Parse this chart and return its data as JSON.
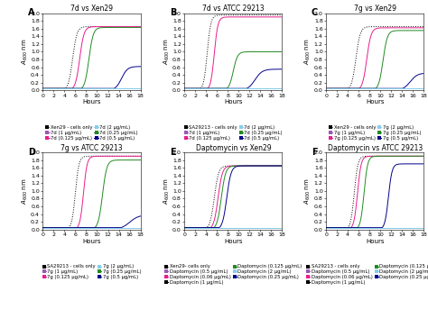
{
  "panels": [
    {
      "label": "A",
      "title": "7d vs Xen29",
      "legend_cols": 2,
      "legend": [
        {
          "text": "Xen29 - cells only",
          "color": "#000000",
          "ls": "dotted"
        },
        {
          "text": "7d (1 µg/mL)",
          "color": "#9b59b6",
          "ls": "solid"
        },
        {
          "text": "7d (0.125 µg/mL)",
          "color": "#e91e8c",
          "ls": "solid"
        },
        {
          "text": "7d (2 µg/mL)",
          "color": "#87ceeb",
          "ls": "solid"
        },
        {
          "text": "7d (0.25 µg/mL)",
          "color": "#228b22",
          "ls": "solid"
        },
        {
          "text": "7d (0.5 µg/mL)",
          "color": "#00008b",
          "ls": "solid"
        }
      ],
      "curves": [
        {
          "color": "#000000",
          "ls": "dotted",
          "lag": 5.5,
          "ymax": 1.65,
          "k": 2.5
        },
        {
          "color": "#e91e8c",
          "ls": "solid",
          "lag": 6.8,
          "ymax": 1.65,
          "k": 2.5
        },
        {
          "color": "#228b22",
          "ls": "solid",
          "lag": 8.5,
          "ymax": 1.63,
          "k": 2.5
        },
        {
          "color": "#00008b",
          "ls": "solid",
          "lag": 14.5,
          "ymax": 0.62,
          "k": 1.8
        },
        {
          "color": "#9b59b6",
          "ls": "solid",
          "lag": 99,
          "ymax": 0.08,
          "k": 0.1
        },
        {
          "color": "#87ceeb",
          "ls": "solid",
          "lag": 99,
          "ymax": 0.08,
          "k": 0.1
        }
      ]
    },
    {
      "label": "B",
      "title": "7d vs ATCC 29213",
      "legend_cols": 2,
      "legend": [
        {
          "text": "SA29213 - cells only",
          "color": "#000000",
          "ls": "dotted"
        },
        {
          "text": "7d (1 µg/mL)",
          "color": "#9b59b6",
          "ls": "solid"
        },
        {
          "text": "7d (0.125 µg/mL)",
          "color": "#e91e8c",
          "ls": "solid"
        },
        {
          "text": "7d (2 µg/mL)",
          "color": "#87ceeb",
          "ls": "solid"
        },
        {
          "text": "7d (0.25 µg/mL)",
          "color": "#228b22",
          "ls": "solid"
        },
        {
          "text": "7d (0.5 µg/mL)",
          "color": "#00008b",
          "ls": "solid"
        }
      ],
      "curves": [
        {
          "color": "#000000",
          "ls": "dotted",
          "lag": 4.2,
          "ymax": 1.95,
          "k": 3.0
        },
        {
          "color": "#e91e8c",
          "ls": "solid",
          "lag": 5.5,
          "ymax": 1.9,
          "k": 3.0
        },
        {
          "color": "#228b22",
          "ls": "solid",
          "lag": 9.0,
          "ymax": 1.0,
          "k": 2.5
        },
        {
          "color": "#00008b",
          "ls": "solid",
          "lag": 13.0,
          "ymax": 0.55,
          "k": 1.5
        },
        {
          "color": "#9b59b6",
          "ls": "solid",
          "lag": 99,
          "ymax": 0.08,
          "k": 0.1
        },
        {
          "color": "#87ceeb",
          "ls": "solid",
          "lag": 99,
          "ymax": 0.08,
          "k": 0.1
        }
      ]
    },
    {
      "label": "C",
      "title": "7g vs Xen29",
      "legend_cols": 2,
      "legend": [
        {
          "text": "Xen29 - cells only",
          "color": "#000000",
          "ls": "dotted"
        },
        {
          "text": "7g (1 µg/mL)",
          "color": "#9b59b6",
          "ls": "solid"
        },
        {
          "text": "7g (0.125 µg/mL)",
          "color": "#e91e8c",
          "ls": "solid"
        },
        {
          "text": "7g (2 µg/mL)",
          "color": "#87ceeb",
          "ls": "solid"
        },
        {
          "text": "7g (0.25 µg/mL)",
          "color": "#228b22",
          "ls": "solid"
        },
        {
          "text": "7g (0.5 µg/mL)",
          "color": "#00008b",
          "ls": "solid"
        }
      ],
      "curves": [
        {
          "color": "#000000",
          "ls": "dotted",
          "lag": 5.5,
          "ymax": 1.65,
          "k": 2.5
        },
        {
          "color": "#e91e8c",
          "ls": "solid",
          "lag": 7.5,
          "ymax": 1.62,
          "k": 2.5
        },
        {
          "color": "#228b22",
          "ls": "solid",
          "lag": 10.5,
          "ymax": 1.55,
          "k": 2.5
        },
        {
          "color": "#00008b",
          "ls": "solid",
          "lag": 15.5,
          "ymax": 0.45,
          "k": 1.5
        },
        {
          "color": "#9b59b6",
          "ls": "solid",
          "lag": 99,
          "ymax": 0.07,
          "k": 0.1
        },
        {
          "color": "#87ceeb",
          "ls": "solid",
          "lag": 99,
          "ymax": 0.07,
          "k": 0.1
        }
      ]
    },
    {
      "label": "D",
      "title": "7g vs ATCC 29213",
      "legend_cols": 2,
      "legend": [
        {
          "text": "SA29213 - cells only",
          "color": "#000000",
          "ls": "dotted"
        },
        {
          "text": "7g (1 µg/mL)",
          "color": "#9b59b6",
          "ls": "solid"
        },
        {
          "text": "7g (0.125 µg/mL)",
          "color": "#e91e8c",
          "ls": "solid"
        },
        {
          "text": "7g (2 µg/mL)",
          "color": "#87ceeb",
          "ls": "solid"
        },
        {
          "text": "7g (0.25 µg/mL)",
          "color": "#228b22",
          "ls": "solid"
        },
        {
          "text": "7g (0.5 µg/mL)",
          "color": "#00008b",
          "ls": "solid"
        }
      ],
      "curves": [
        {
          "color": "#000000",
          "ls": "dotted",
          "lag": 6.0,
          "ymax": 1.9,
          "k": 3.0
        },
        {
          "color": "#e91e8c",
          "ls": "solid",
          "lag": 7.5,
          "ymax": 1.9,
          "k": 3.0
        },
        {
          "color": "#228b22",
          "ls": "solid",
          "lag": 11.0,
          "ymax": 1.8,
          "k": 2.5
        },
        {
          "color": "#00008b",
          "ls": "solid",
          "lag": 16.0,
          "ymax": 0.38,
          "k": 1.2
        },
        {
          "color": "#9b59b6",
          "ls": "solid",
          "lag": 99,
          "ymax": 0.07,
          "k": 0.1
        },
        {
          "color": "#87ceeb",
          "ls": "solid",
          "lag": 99,
          "ymax": 0.07,
          "k": 0.1
        }
      ]
    },
    {
      "label": "E",
      "title": "Daptomycin vs Xen29",
      "legend_cols": 2,
      "legend": [
        {
          "text": "Xen29- cells only",
          "color": "#000000",
          "ls": "dotted"
        },
        {
          "text": "Daptomycin (0.5 µg/mL)",
          "color": "#9b59b6",
          "ls": "solid"
        },
        {
          "text": "Daptomycin (0.06 µg/mL)",
          "color": "#e91e8c",
          "ls": "solid"
        },
        {
          "text": "Daptomycin (1 µg/mL)",
          "color": "#000000",
          "ls": "solid"
        },
        {
          "text": "Daptomycin (0.125 µg/mL)",
          "color": "#228b22",
          "ls": "solid"
        },
        {
          "text": "Daptomycin (2 µg/mL)",
          "color": "#87ceeb",
          "ls": "solid"
        },
        {
          "text": "Daptomycin (0.25 µg/mL)",
          "color": "#00008b",
          "ls": "solid"
        }
      ],
      "curves": [
        {
          "color": "#000000",
          "ls": "dotted",
          "lag": 5.5,
          "ymax": 1.65,
          "k": 2.5
        },
        {
          "color": "#e91e8c",
          "ls": "solid",
          "lag": 6.2,
          "ymax": 1.65,
          "k": 2.5
        },
        {
          "color": "#228b22",
          "ls": "solid",
          "lag": 6.8,
          "ymax": 1.65,
          "k": 2.5
        },
        {
          "color": "#00008b",
          "ls": "solid",
          "lag": 7.8,
          "ymax": 1.65,
          "k": 2.5
        },
        {
          "color": "#9b59b6",
          "ls": "solid",
          "lag": 99,
          "ymax": 0.05,
          "k": 0.1
        },
        {
          "color": "#3d3d3d",
          "ls": "solid",
          "lag": 99,
          "ymax": 0.05,
          "k": 0.1
        },
        {
          "color": "#87ceeb",
          "ls": "solid",
          "lag": 99,
          "ymax": 0.05,
          "k": 0.1
        }
      ]
    },
    {
      "label": "F",
      "title": "Daptomycin vs ATCC 29213",
      "legend_cols": 2,
      "legend": [
        {
          "text": "SA29213 - cells only",
          "color": "#000000",
          "ls": "dotted"
        },
        {
          "text": "Daptomycin (0.5 µg/mL)",
          "color": "#9b59b6",
          "ls": "solid"
        },
        {
          "text": "Daptomycin (0.06 µg/mL)",
          "color": "#e91e8c",
          "ls": "solid"
        },
        {
          "text": "Daptomycin (1 µg/mL)",
          "color": "#000000",
          "ls": "solid"
        },
        {
          "text": "Daptomycin (0.125 µg/mL)",
          "color": "#228b22",
          "ls": "solid"
        },
        {
          "text": "Daptomycin (2 µg/mL)",
          "color": "#87ceeb",
          "ls": "solid"
        },
        {
          "text": "Daptomycin (0.25 µg/mL)",
          "color": "#00008b",
          "ls": "solid"
        }
      ],
      "curves": [
        {
          "color": "#000000",
          "ls": "dotted",
          "lag": 5.2,
          "ymax": 1.9,
          "k": 3.0
        },
        {
          "color": "#e91e8c",
          "ls": "solid",
          "lag": 5.8,
          "ymax": 1.9,
          "k": 3.0
        },
        {
          "color": "#228b22",
          "ls": "solid",
          "lag": 7.0,
          "ymax": 1.9,
          "k": 3.0
        },
        {
          "color": "#00008b",
          "ls": "solid",
          "lag": 11.5,
          "ymax": 1.7,
          "k": 3.0
        },
        {
          "color": "#9b59b6",
          "ls": "solid",
          "lag": 99,
          "ymax": 0.05,
          "k": 0.1
        },
        {
          "color": "#3d3d3d",
          "ls": "solid",
          "lag": 99,
          "ymax": 0.05,
          "k": 0.1
        },
        {
          "color": "#87ceeb",
          "ls": "solid",
          "lag": 99,
          "ymax": 0.05,
          "k": 0.1
        }
      ]
    }
  ],
  "xlabel": "Hours",
  "ylabel": "A",
  "ylabel_sub": "600",
  "ylabel_unit": " nm",
  "xlim": [
    0,
    18
  ],
  "xticks": [
    0,
    2,
    4,
    6,
    8,
    10,
    12,
    14,
    16,
    18
  ],
  "ylim": [
    0.0,
    2.0
  ],
  "yticks": [
    0.0,
    0.2,
    0.4,
    0.6,
    0.8,
    1.0,
    1.2,
    1.4,
    1.6,
    1.8,
    2.0
  ],
  "legend_fontsize": 3.8,
  "title_fontsize": 5.5,
  "tick_fontsize": 4.5,
  "label_fontsize": 5.0,
  "panel_label_fontsize": 7.0,
  "lw": 0.7
}
